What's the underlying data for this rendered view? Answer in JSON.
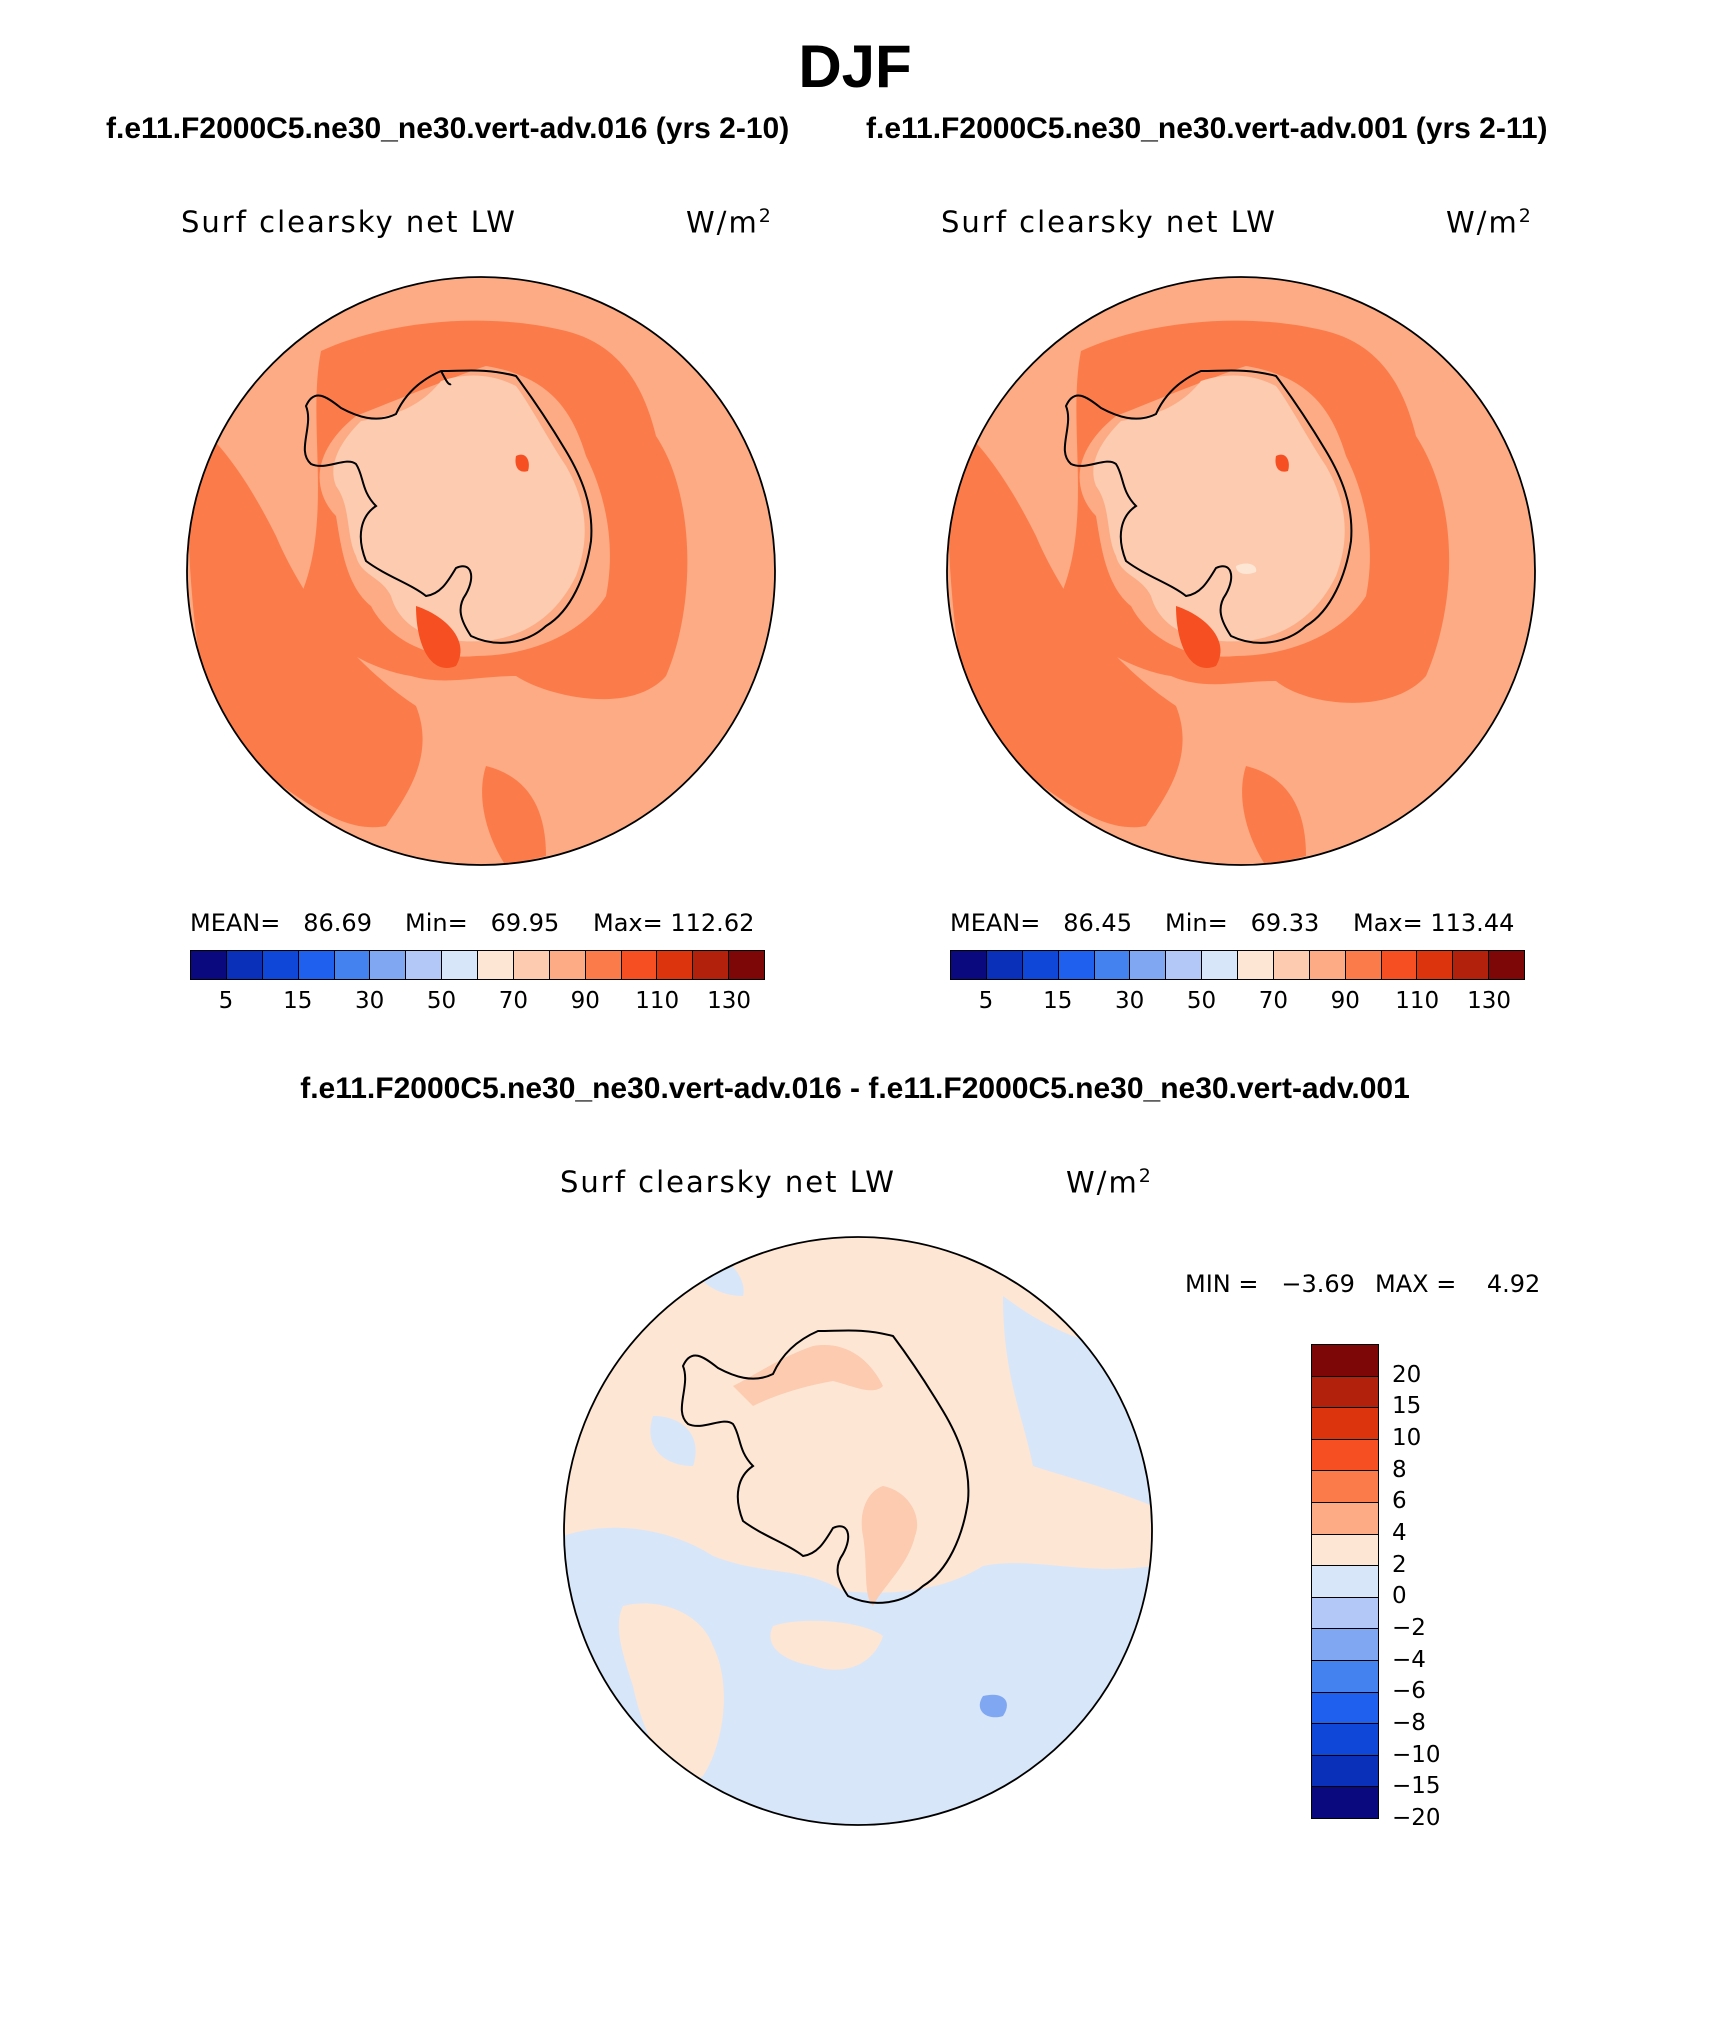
{
  "figure": {
    "title": "DJF",
    "case_a_title": "f.e11.F2000C5.ne30_ne30.vert-adv.016 (yrs 2-10)",
    "case_b_title": "f.e11.F2000C5.ne30_ne30.vert-adv.001 (yrs 2-11)",
    "diff_title": "f.e11.F2000C5.ne30_ne30.vert-adv.016 - f.e11.F2000C5.ne30_ne30.vert-adv.001"
  },
  "chart_data": [
    {
      "type": "heatmap",
      "projection": "south-polar-stereographic",
      "variable": "Surf clearsky net LW",
      "units_prefix": "W/m",
      "units_exp": "2",
      "stats": {
        "mean_label": "MEAN=",
        "mean": "86.69",
        "min_label": "Min=",
        "min": "69.95",
        "max_label": "Max=",
        "max": "112.62"
      },
      "colorbar": {
        "colors": [
          "#0a0a7e",
          "#0a2fb8",
          "#0f47d8",
          "#2060ee",
          "#4482f0",
          "#80a8f2",
          "#b3c8f6",
          "#d8e6fa",
          "#fde6d4",
          "#fccbb0",
          "#fcab84",
          "#fb7c4a",
          "#f64f22",
          "#dc350e",
          "#b1210b",
          "#7d0606"
        ],
        "labels": [
          "5",
          "15",
          "30",
          "50",
          "70",
          "90",
          "110",
          "130"
        ]
      }
    },
    {
      "type": "heatmap",
      "projection": "south-polar-stereographic",
      "variable": "Surf clearsky net LW",
      "units_prefix": "W/m",
      "units_exp": "2",
      "stats": {
        "mean_label": "MEAN=",
        "mean": "86.45",
        "min_label": "Min=",
        "min": "69.33",
        "max_label": "Max=",
        "max": "113.44"
      },
      "colorbar": {
        "colors": [
          "#0a0a7e",
          "#0a2fb8",
          "#0f47d8",
          "#2060ee",
          "#4482f0",
          "#80a8f2",
          "#b3c8f6",
          "#d8e6fa",
          "#fde6d4",
          "#fccbb0",
          "#fcab84",
          "#fb7c4a",
          "#f64f22",
          "#dc350e",
          "#b1210b",
          "#7d0606"
        ],
        "labels": [
          "5",
          "15",
          "30",
          "50",
          "70",
          "90",
          "110",
          "130"
        ]
      }
    },
    {
      "type": "heatmap",
      "projection": "south-polar-stereographic",
      "variable": "Surf clearsky net LW",
      "units_prefix": "W/m",
      "units_exp": "2",
      "stats": {
        "min_label": "MIN =",
        "min": "−3.69",
        "max_label": "MAX =",
        "max": "4.92"
      },
      "colorbar": {
        "colors_top_to_bottom": [
          "#7d0606",
          "#b1210b",
          "#dc350e",
          "#f64f22",
          "#fb7c4a",
          "#fcab84",
          "#fde6d4",
          "#d8e6fa",
          "#b3c8f6",
          "#80a8f2",
          "#4482f0",
          "#2060ee",
          "#0f47d8",
          "#0a2fb8",
          "#0a0a7e"
        ],
        "labels_top_to_bottom": [
          "20",
          "15",
          "10",
          "8",
          "6",
          "4",
          "2",
          "0",
          "−2",
          "−4",
          "−6",
          "−8",
          "−10",
          "−15",
          "−20"
        ]
      }
    }
  ]
}
